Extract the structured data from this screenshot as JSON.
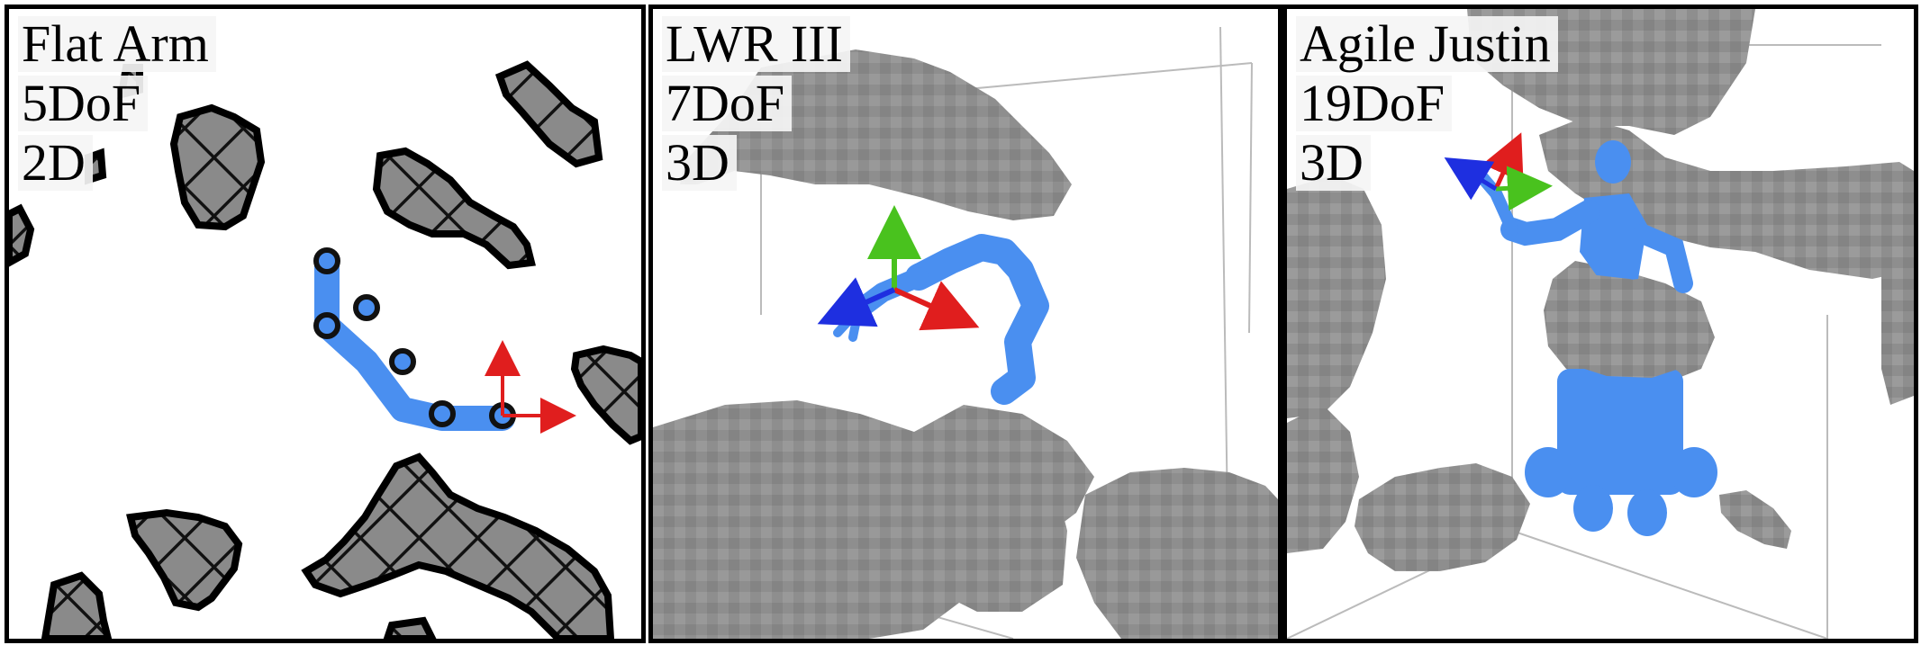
{
  "panels": [
    {
      "name": "Flat Arm",
      "dof": "5DoF",
      "dim": "2D"
    },
    {
      "name": "LWR III",
      "dof": "7DoF",
      "dim": "3D"
    },
    {
      "name": "Agile Justin",
      "dof": "19DoF",
      "dim": "3D"
    }
  ],
  "colors": {
    "robot": "#4a8ff0",
    "obstacle_2d": "#7f7f7f",
    "obstacle_3d": "#8c8c8c",
    "axis_x": "#e01e1e",
    "axis_y": "#49c21e",
    "axis_z": "#1e2fe0"
  }
}
